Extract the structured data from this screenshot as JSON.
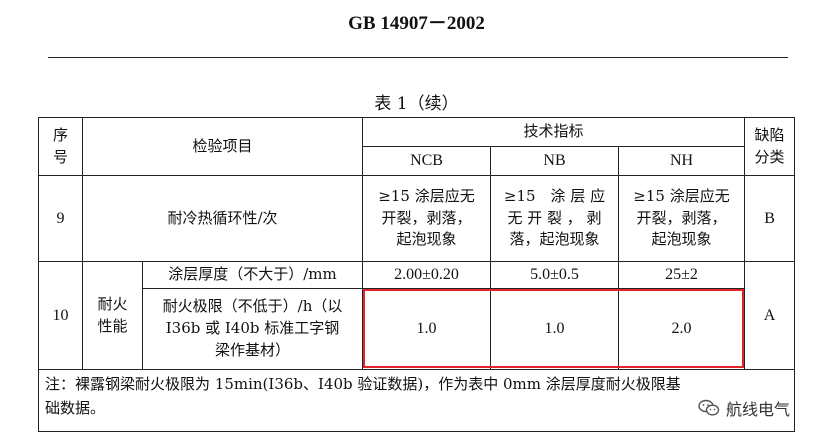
{
  "header": {
    "standard_code": "GB 14907－2002"
  },
  "caption": "表 1（续）",
  "table": {
    "headers": {
      "seq_line1": "序",
      "seq_line2": "号",
      "item": "检验项目",
      "tech": "技术指标",
      "defect_line1": "缺陷",
      "defect_line2": "分类",
      "cols": [
        "NCB",
        "NB",
        "NH"
      ]
    },
    "row9": {
      "seq": "9",
      "item": "耐冷热循环性/次",
      "ncb": [
        "≥15 涂层应无",
        "开裂，剥落，",
        "起泡现象"
      ],
      "nb": [
        "≥15　涂 层 应",
        "无 开 裂 ， 剥",
        "落，起泡现象"
      ],
      "nh": [
        "≥15 涂层应无",
        "开裂，剥落，",
        "起泡现象"
      ],
      "defect": "B"
    },
    "row10": {
      "seq": "10",
      "group_line1": "耐火",
      "group_line2": "性能",
      "defect": "A",
      "thickness": {
        "item": "涂层厚度（不大于）/mm",
        "ncb": "2.00±0.20",
        "nb": "5.0±0.5",
        "nh": "25±2"
      },
      "fire_limit": {
        "item": [
          "耐火极限（不低于）/h（以",
          "I36b 或 I40b 标准工字钢",
          "梁作基材）"
        ],
        "ncb": "1.0",
        "nb": "1.0",
        "nh": "2.0"
      }
    },
    "note": [
      "注：裸露钢梁耐火极限为 15min(I36b、I40b 验证数据)，作为表中 0mm 涂层厚度耐火极限基",
      "础数据。"
    ]
  },
  "watermark": {
    "text": "航线电气"
  },
  "colors": {
    "highlight": "#e0262a"
  }
}
